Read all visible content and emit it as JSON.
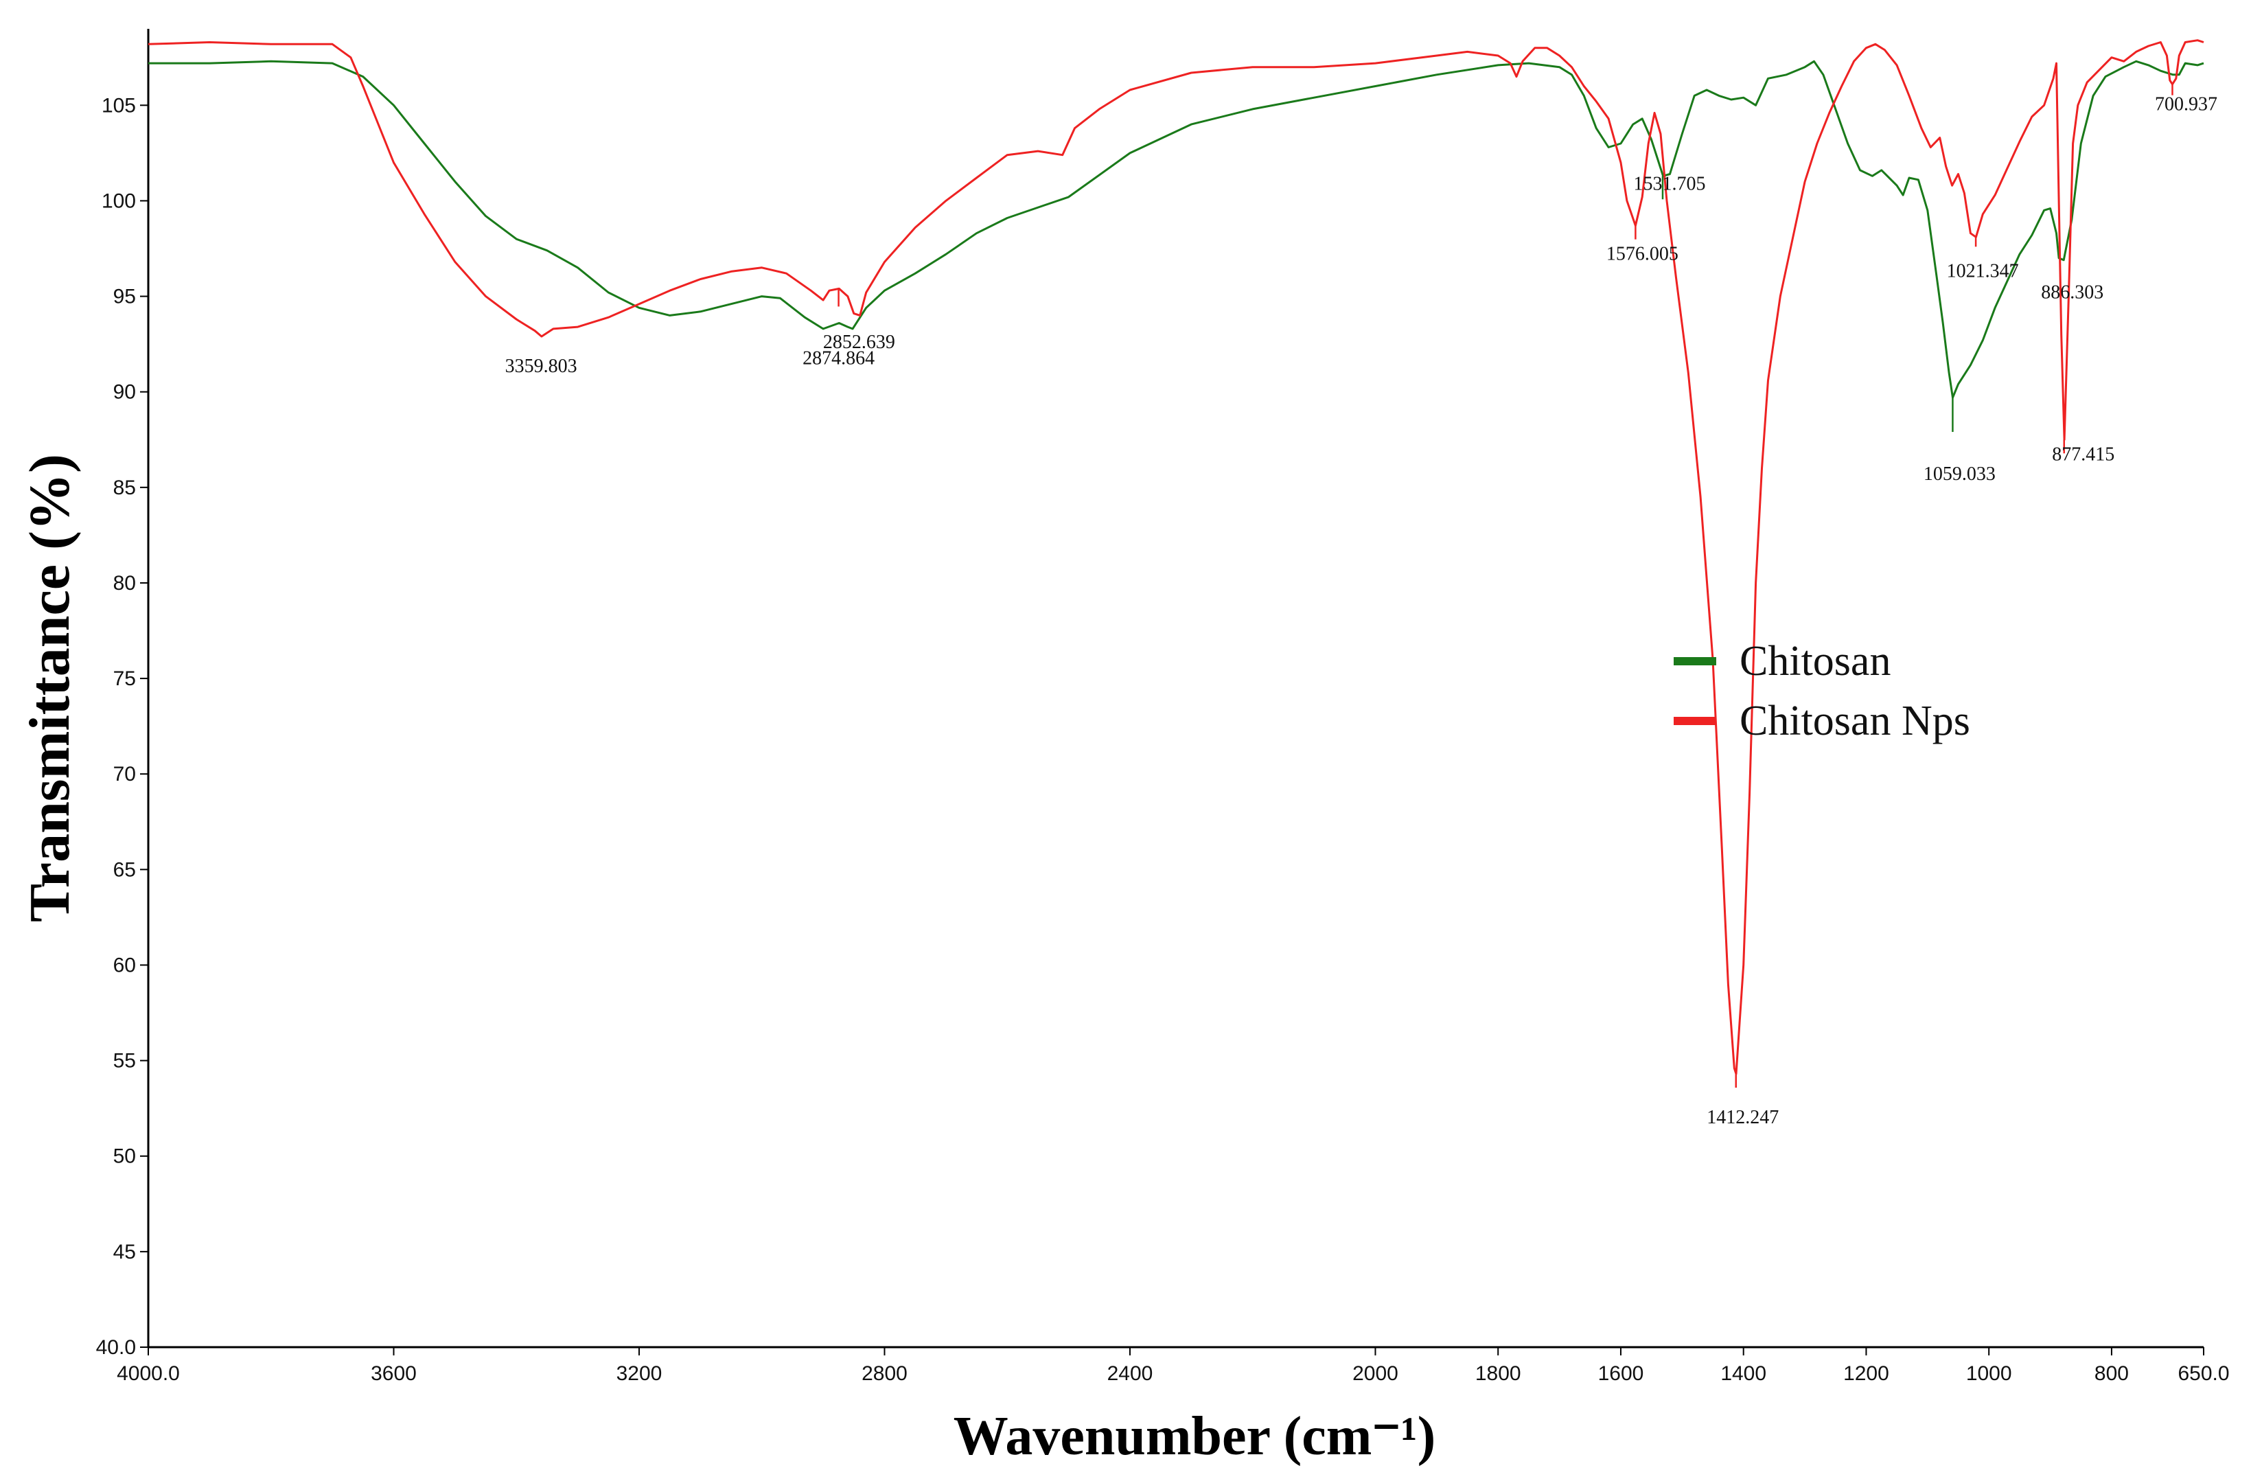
{
  "chart_data": {
    "type": "line",
    "xlabel": "Wavenumber (cm⁻¹)",
    "ylabel": "Transmittance (%)",
    "xlim": [
      4000,
      650
    ],
    "ylim": [
      40,
      109
    ],
    "x_reversed": true,
    "x_ticks": [
      {
        "value": 4000,
        "label": "4000.0"
      },
      {
        "value": 3600,
        "label": "3600"
      },
      {
        "value": 3200,
        "label": "3200"
      },
      {
        "value": 2800,
        "label": "2800"
      },
      {
        "value": 2400,
        "label": "2400"
      },
      {
        "value": 2000,
        "label": "2000"
      },
      {
        "value": 1800,
        "label": "1800"
      },
      {
        "value": 1600,
        "label": "1600"
      },
      {
        "value": 1400,
        "label": "1400"
      },
      {
        "value": 1200,
        "label": "1200"
      },
      {
        "value": 1000,
        "label": "1000"
      },
      {
        "value": 800,
        "label": "800"
      },
      {
        "value": 650,
        "label": "650.0"
      }
    ],
    "y_ticks": [
      {
        "value": 105,
        "label": "105"
      },
      {
        "value": 100,
        "label": "100"
      },
      {
        "value": 95,
        "label": "95"
      },
      {
        "value": 90,
        "label": "90"
      },
      {
        "value": 85,
        "label": "85"
      },
      {
        "value": 80,
        "label": "80"
      },
      {
        "value": 75,
        "label": "75"
      },
      {
        "value": 70,
        "label": "70"
      },
      {
        "value": 65,
        "label": "65"
      },
      {
        "value": 60,
        "label": "60"
      },
      {
        "value": 55,
        "label": "55"
      },
      {
        "value": 50,
        "label": "50"
      },
      {
        "value": 45,
        "label": "45"
      },
      {
        "value": 40,
        "label": "40.0"
      }
    ],
    "grid": false,
    "legend_position": "right-center",
    "series": [
      {
        "name": "Chitosan",
        "color": "#1a7a1a",
        "points": [
          [
            4000,
            107.2
          ],
          [
            3900,
            107.2
          ],
          [
            3800,
            107.3
          ],
          [
            3700,
            107.2
          ],
          [
            3650,
            106.5
          ],
          [
            3600,
            105
          ],
          [
            3550,
            103
          ],
          [
            3500,
            101
          ],
          [
            3450,
            99.2
          ],
          [
            3400,
            98
          ],
          [
            3350,
            97.4
          ],
          [
            3300,
            96.5
          ],
          [
            3250,
            95.2
          ],
          [
            3200,
            94.4
          ],
          [
            3150,
            94
          ],
          [
            3100,
            94.2
          ],
          [
            3050,
            94.6
          ],
          [
            3000,
            95
          ],
          [
            2970,
            94.9
          ],
          [
            2930,
            93.9
          ],
          [
            2900,
            93.3
          ],
          [
            2874,
            93.6
          ],
          [
            2860,
            93.4
          ],
          [
            2852,
            93.3
          ],
          [
            2830,
            94.4
          ],
          [
            2800,
            95.3
          ],
          [
            2750,
            96.2
          ],
          [
            2700,
            97.2
          ],
          [
            2650,
            98.3
          ],
          [
            2600,
            99.1
          ],
          [
            2500,
            100.2
          ],
          [
            2400,
            102.5
          ],
          [
            2300,
            104
          ],
          [
            2200,
            104.8
          ],
          [
            2100,
            105.4
          ],
          [
            2000,
            106
          ],
          [
            1900,
            106.6
          ],
          [
            1800,
            107.1
          ],
          [
            1750,
            107.2
          ],
          [
            1700,
            107
          ],
          [
            1680,
            106.6
          ],
          [
            1660,
            105.5
          ],
          [
            1640,
            103.8
          ],
          [
            1620,
            102.8
          ],
          [
            1600,
            103
          ],
          [
            1580,
            104
          ],
          [
            1565,
            104.3
          ],
          [
            1550,
            103.2
          ],
          [
            1531,
            101.3
          ],
          [
            1520,
            101.4
          ],
          [
            1500,
            103.5
          ],
          [
            1480,
            105.5
          ],
          [
            1460,
            105.8
          ],
          [
            1440,
            105.5
          ],
          [
            1420,
            105.3
          ],
          [
            1400,
            105.4
          ],
          [
            1380,
            105
          ],
          [
            1360,
            106.4
          ],
          [
            1330,
            106.6
          ],
          [
            1300,
            107
          ],
          [
            1285,
            107.3
          ],
          [
            1270,
            106.6
          ],
          [
            1250,
            104.8
          ],
          [
            1230,
            103
          ],
          [
            1210,
            101.6
          ],
          [
            1190,
            101.3
          ],
          [
            1175,
            101.6
          ],
          [
            1150,
            100.8
          ],
          [
            1140,
            100.3
          ],
          [
            1130,
            101.2
          ],
          [
            1115,
            101.1
          ],
          [
            1100,
            99.5
          ],
          [
            1085,
            96
          ],
          [
            1075,
            93.6
          ],
          [
            1065,
            91
          ],
          [
            1059,
            89.7
          ],
          [
            1050,
            90.4
          ],
          [
            1030,
            91.4
          ],
          [
            1010,
            92.7
          ],
          [
            990,
            94.4
          ],
          [
            970,
            95.8
          ],
          [
            950,
            97.2
          ],
          [
            930,
            98.2
          ],
          [
            910,
            99.5
          ],
          [
            900,
            99.6
          ],
          [
            890,
            98.3
          ],
          [
            886,
            97
          ],
          [
            878,
            96.9
          ],
          [
            865,
            99
          ],
          [
            850,
            103
          ],
          [
            830,
            105.5
          ],
          [
            810,
            106.5
          ],
          [
            780,
            107
          ],
          [
            760,
            107.3
          ],
          [
            740,
            107.1
          ],
          [
            720,
            106.8
          ],
          [
            700,
            106.6
          ],
          [
            690,
            106.6
          ],
          [
            680,
            107.2
          ],
          [
            660,
            107.1
          ],
          [
            650,
            107.2
          ]
        ],
        "peaks": [
          2852.639,
          1531.705,
          1059.033,
          886.303
        ]
      },
      {
        "name": "Chitosan Nps",
        "color": "#ee2222",
        "points": [
          [
            4000,
            108.2
          ],
          [
            3900,
            108.3
          ],
          [
            3800,
            108.2
          ],
          [
            3700,
            108.2
          ],
          [
            3670,
            107.5
          ],
          [
            3650,
            106
          ],
          [
            3600,
            102
          ],
          [
            3550,
            99.3
          ],
          [
            3500,
            96.8
          ],
          [
            3450,
            95
          ],
          [
            3400,
            93.8
          ],
          [
            3370,
            93.2
          ],
          [
            3359,
            92.9
          ],
          [
            3340,
            93.3
          ],
          [
            3300,
            93.4
          ],
          [
            3250,
            93.9
          ],
          [
            3200,
            94.6
          ],
          [
            3150,
            95.3
          ],
          [
            3100,
            95.9
          ],
          [
            3050,
            96.3
          ],
          [
            3000,
            96.5
          ],
          [
            2960,
            96.2
          ],
          [
            2920,
            95.3
          ],
          [
            2900,
            94.8
          ],
          [
            2890,
            95.3
          ],
          [
            2874,
            95.4
          ],
          [
            2860,
            95
          ],
          [
            2850,
            94.1
          ],
          [
            2840,
            94
          ],
          [
            2830,
            95.2
          ],
          [
            2800,
            96.8
          ],
          [
            2750,
            98.6
          ],
          [
            2700,
            100
          ],
          [
            2650,
            101.2
          ],
          [
            2600,
            102.4
          ],
          [
            2550,
            102.6
          ],
          [
            2510,
            102.4
          ],
          [
            2490,
            103.8
          ],
          [
            2450,
            104.8
          ],
          [
            2400,
            105.8
          ],
          [
            2300,
            106.7
          ],
          [
            2200,
            107
          ],
          [
            2100,
            107
          ],
          [
            2000,
            107.2
          ],
          [
            1900,
            107.6
          ],
          [
            1850,
            107.8
          ],
          [
            1800,
            107.6
          ],
          [
            1780,
            107.2
          ],
          [
            1770,
            106.5
          ],
          [
            1760,
            107.3
          ],
          [
            1740,
            108
          ],
          [
            1720,
            108
          ],
          [
            1700,
            107.6
          ],
          [
            1680,
            107
          ],
          [
            1660,
            106
          ],
          [
            1640,
            105.2
          ],
          [
            1620,
            104.3
          ],
          [
            1600,
            102
          ],
          [
            1590,
            100
          ],
          [
            1576,
            98.7
          ],
          [
            1565,
            100.2
          ],
          [
            1555,
            103
          ],
          [
            1545,
            104.6
          ],
          [
            1535,
            103.5
          ],
          [
            1525,
            100
          ],
          [
            1510,
            96
          ],
          [
            1490,
            91
          ],
          [
            1470,
            84.5
          ],
          [
            1450,
            76
          ],
          [
            1435,
            66
          ],
          [
            1425,
            59
          ],
          [
            1415,
            54.6
          ],
          [
            1412,
            54.3
          ],
          [
            1400,
            60
          ],
          [
            1390,
            69
          ],
          [
            1380,
            80
          ],
          [
            1370,
            86
          ],
          [
            1360,
            90.6
          ],
          [
            1340,
            95
          ],
          [
            1320,
            98
          ],
          [
            1300,
            101
          ],
          [
            1280,
            103
          ],
          [
            1260,
            104.6
          ],
          [
            1240,
            106
          ],
          [
            1220,
            107.3
          ],
          [
            1200,
            108
          ],
          [
            1185,
            108.2
          ],
          [
            1170,
            107.9
          ],
          [
            1150,
            107.1
          ],
          [
            1130,
            105.5
          ],
          [
            1110,
            103.8
          ],
          [
            1095,
            102.8
          ],
          [
            1080,
            103.3
          ],
          [
            1070,
            101.8
          ],
          [
            1060,
            100.8
          ],
          [
            1050,
            101.4
          ],
          [
            1040,
            100.4
          ],
          [
            1030,
            98.3
          ],
          [
            1021,
            98.1
          ],
          [
            1010,
            99.3
          ],
          [
            990,
            100.3
          ],
          [
            970,
            101.7
          ],
          [
            950,
            103.1
          ],
          [
            930,
            104.4
          ],
          [
            910,
            105
          ],
          [
            895,
            106.4
          ],
          [
            890,
            107.2
          ],
          [
            886,
            100
          ],
          [
            882,
            93
          ],
          [
            877,
            87.5
          ],
          [
            870,
            95
          ],
          [
            863,
            103
          ],
          [
            855,
            105
          ],
          [
            840,
            106.2
          ],
          [
            800,
            107.5
          ],
          [
            780,
            107.3
          ],
          [
            760,
            107.8
          ],
          [
            740,
            108.1
          ],
          [
            720,
            108.3
          ],
          [
            710,
            107.6
          ],
          [
            705,
            106.3
          ],
          [
            700.9,
            106.1
          ],
          [
            695,
            106.4
          ],
          [
            690,
            107.6
          ],
          [
            680,
            108.3
          ],
          [
            660,
            108.4
          ],
          [
            650,
            108.3
          ]
        ],
        "peaks": [
          3359.803,
          2874.864,
          1576.005,
          1412.247,
          1021.347,
          877.415,
          700.937
        ]
      }
    ],
    "annotations": [
      {
        "text": "3359.803",
        "x": 3359.803,
        "y": 92.9,
        "series": "Chitosan Nps"
      },
      {
        "text": "2852.639",
        "x": 2852.639,
        "y": 93.3,
        "series": "Chitosan"
      },
      {
        "text": "2874.864",
        "x": 2874.864,
        "y": 95.4,
        "series": "Chitosan Nps"
      },
      {
        "text": "1576.005",
        "x": 1576.005,
        "y": 98.7,
        "series": "Chitosan Nps"
      },
      {
        "text": "1531.705",
        "x": 1531.705,
        "y": 101.3,
        "series": "Chitosan"
      },
      {
        "text": "1412.247",
        "x": 1412.247,
        "y": 54.3,
        "series": "Chitosan Nps"
      },
      {
        "text": "1059.033",
        "x": 1059.033,
        "y": 89.7,
        "series": "Chitosan"
      },
      {
        "text": "1021.347",
        "x": 1021.347,
        "y": 98.1,
        "series": "Chitosan Nps"
      },
      {
        "text": "886.303",
        "x": 886.303,
        "y": 96.9,
        "series": "Chitosan"
      },
      {
        "text": "877.415",
        "x": 877.415,
        "y": 87.5,
        "series": "Chitosan Nps"
      },
      {
        "text": "700.937",
        "x": 700.937,
        "y": 106.1,
        "series": "Chitosan Nps"
      }
    ]
  }
}
